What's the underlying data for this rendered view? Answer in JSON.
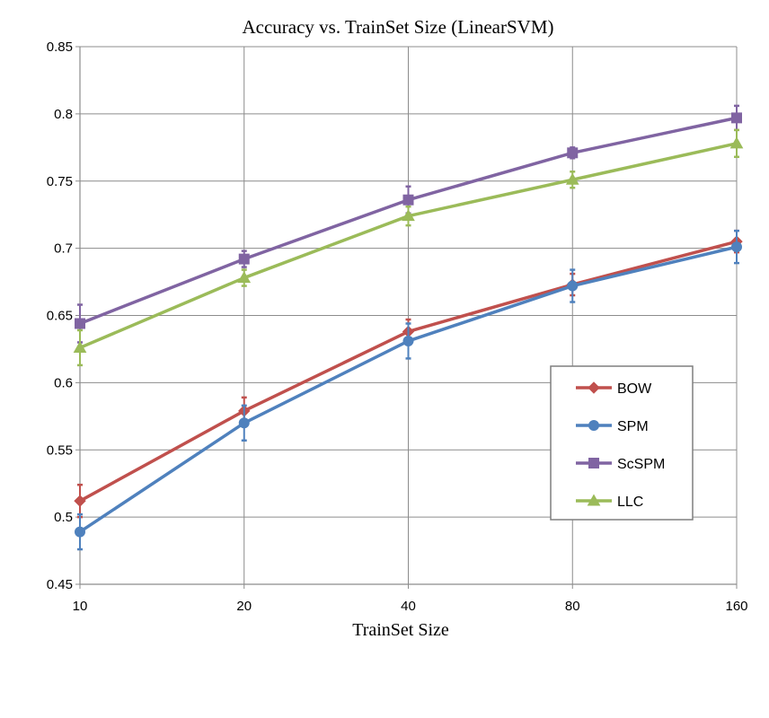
{
  "chart_data": {
    "type": "line",
    "title": "Accuracy vs. TrainSet Size (LinearSVM)",
    "xlabel": "TrainSet Size",
    "ylabel": "",
    "categories": [
      "10",
      "20",
      "40",
      "80",
      "160"
    ],
    "ylim": [
      0.45,
      0.85
    ],
    "yticks": [
      "0.45",
      "0.5",
      "0.55",
      "0.6",
      "0.65",
      "0.7",
      "0.75",
      "0.8",
      "0.85"
    ],
    "grid": true,
    "legend_position": "right",
    "series": [
      {
        "name": "BOW",
        "color": "#c0504d",
        "marker": "diamond",
        "values": [
          0.512,
          0.579,
          0.638,
          0.673,
          0.705
        ],
        "error": [
          0.012,
          0.01,
          0.009,
          0.008,
          0.008
        ]
      },
      {
        "name": "SPM",
        "color": "#4f81bd",
        "marker": "circle",
        "values": [
          0.489,
          0.57,
          0.631,
          0.672,
          0.701
        ],
        "error": [
          0.013,
          0.013,
          0.013,
          0.012,
          0.012
        ]
      },
      {
        "name": "ScSPM",
        "color": "#8064a2",
        "marker": "square",
        "values": [
          0.644,
          0.692,
          0.736,
          0.771,
          0.797
        ],
        "error": [
          0.014,
          0.006,
          0.01,
          0.004,
          0.009
        ]
      },
      {
        "name": "LLC",
        "color": "#9bbb59",
        "marker": "triangle",
        "values": [
          0.626,
          0.678,
          0.724,
          0.751,
          0.778
        ],
        "error": [
          0.013,
          0.006,
          0.007,
          0.006,
          0.01
        ]
      }
    ]
  }
}
